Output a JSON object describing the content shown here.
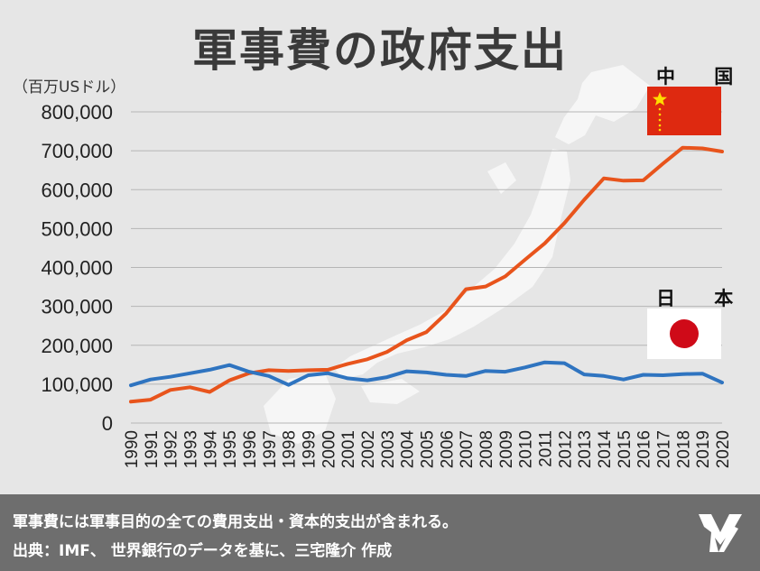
{
  "title": "軍事費の政府支出",
  "unit_label": "（百万USドル）",
  "legend": {
    "china_label": "中 国",
    "japan_label": "日 本"
  },
  "footer": {
    "note": "軍事費には軍事目的の全ての費用支出・資本的支出が含まれる。",
    "source": "出典：IMF、 世界銀行のデータを基に、三宅隆介 作成"
  },
  "colors": {
    "china": "#e8541c",
    "japan": "#2f74c0",
    "background": "#e6e6e6",
    "footer": "#6e6e6e"
  },
  "chart_data": {
    "type": "line",
    "title": "軍事費の政府支出",
    "ylabel": "（百万USドル）",
    "xlabel": "",
    "ylim": [
      0,
      800000
    ],
    "yticks": [
      0,
      100000,
      200000,
      300000,
      400000,
      500000,
      600000,
      700000,
      800000
    ],
    "ytick_labels": [
      "0",
      "100,000",
      "200,000",
      "300,000",
      "400,000",
      "500,000",
      "600,000",
      "700,000",
      "800,000"
    ],
    "grid": true,
    "x": [
      1990,
      1991,
      1992,
      1993,
      1994,
      1995,
      1996,
      1997,
      1998,
      1999,
      2000,
      2001,
      2002,
      2003,
      2004,
      2005,
      2006,
      2007,
      2008,
      2009,
      2010,
      2011,
      2012,
      2013,
      2014,
      2015,
      2016,
      2017,
      2018,
      2019,
      2020
    ],
    "series": [
      {
        "name": "中 国",
        "color": "#e8541c",
        "values": [
          55000,
          60000,
          85000,
          92000,
          80000,
          110000,
          128000,
          136000,
          134000,
          136000,
          137000,
          152000,
          164000,
          183000,
          213000,
          234000,
          282000,
          344000,
          351000,
          377000,
          420000,
          462000,
          514000,
          574000,
          629000,
          623000,
          624000,
          667000,
          708000,
          706000,
          698000
        ]
      },
      {
        "name": "日 本",
        "color": "#2f74c0",
        "values": [
          97000,
          112000,
          119000,
          128000,
          137000,
          149000,
          132000,
          121000,
          98000,
          123000,
          128000,
          115000,
          110000,
          118000,
          133000,
          130000,
          124000,
          121000,
          134000,
          132000,
          143000,
          156000,
          154000,
          125000,
          121000,
          112000,
          124000,
          123000,
          126000,
          127000,
          104000
        ]
      }
    ]
  }
}
